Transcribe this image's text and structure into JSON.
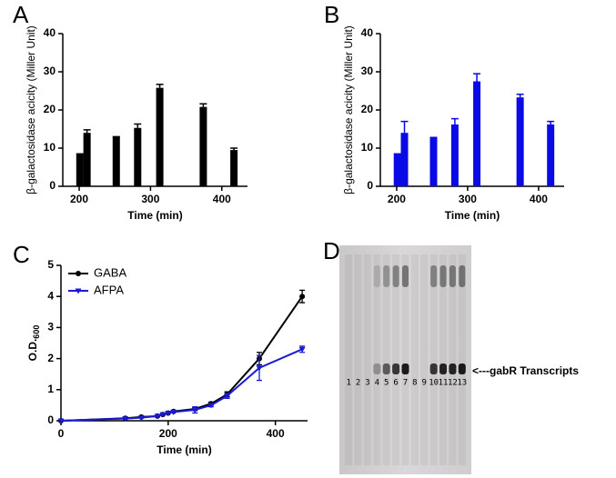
{
  "chart_data": [
    {
      "type": "bar",
      "panel_label": "A",
      "xlabel": "Time (min)",
      "ylabel": "β-galactosidase acicity (Miller Unit)",
      "x": [
        201,
        211,
        252,
        282,
        313,
        374,
        417
      ],
      "xlim": [
        177,
        436
      ],
      "xticks": [
        200,
        300,
        400
      ],
      "ylim": [
        0,
        40
      ],
      "yticks": [
        0,
        10,
        20,
        30,
        40
      ],
      "series": [
        {
          "color": "#000000",
          "values": [
            8.5,
            14,
            13,
            15.3,
            25.8,
            20.8,
            9.5
          ],
          "errors": [
            0,
            0.8,
            0,
            1,
            0.9,
            0.8,
            0.5
          ]
        }
      ]
    },
    {
      "type": "bar",
      "panel_label": "B",
      "xlabel": "Time (min)",
      "ylabel": "β-galactosidase acicity (Miller Unit)",
      "x": [
        201,
        211,
        252,
        282,
        313,
        374,
        417
      ],
      "xlim": [
        177,
        436
      ],
      "xticks": [
        200,
        300,
        400
      ],
      "ylim": [
        0,
        40
      ],
      "yticks": [
        0,
        10,
        20,
        30,
        40
      ],
      "series": [
        {
          "color": "#0a0ae6",
          "values": [
            8.5,
            14,
            12.8,
            16.2,
            27.5,
            23.3,
            16.2
          ],
          "errors": [
            0,
            3,
            0,
            1.5,
            2,
            0.8,
            0.8
          ]
        }
      ]
    },
    {
      "type": "line",
      "panel_label": "C",
      "xlabel": "Time (min)",
      "ylabel": "O.D.",
      "ylabel_sub": "600",
      "x": [
        0,
        120,
        150,
        180,
        190,
        200,
        210,
        250,
        280,
        310,
        370,
        450
      ],
      "xlim": [
        0,
        460
      ],
      "xticks": [
        0,
        200,
        400
      ],
      "ylim": [
        0,
        5
      ],
      "yticks": [
        0,
        1,
        2,
        3,
        4,
        5
      ],
      "legend": "upper left",
      "series": [
        {
          "name": "GABA",
          "color": "#000000",
          "marker": "circle",
          "values": [
            0,
            0.08,
            0.12,
            0.15,
            0.2,
            0.25,
            0.3,
            0.38,
            0.55,
            0.85,
            2.0,
            4.0
          ],
          "errors": [
            0,
            0,
            0,
            0,
            0,
            0,
            0,
            0.05,
            0.05,
            0.08,
            0.2,
            0.2
          ]
        },
        {
          "name": "AFPA",
          "color": "#1a1ad6",
          "marker": "triangle",
          "values": [
            0,
            0.07,
            0.1,
            0.15,
            0.2,
            0.25,
            0.28,
            0.35,
            0.5,
            0.8,
            1.7,
            2.3
          ],
          "errors": [
            0,
            0,
            0,
            0,
            0,
            0,
            0,
            0.1,
            0.05,
            0.08,
            0.4,
            0.1
          ]
        }
      ]
    },
    {
      "type": "gel",
      "panel_label": "D",
      "lanes": [
        "1",
        "2",
        "3",
        "4",
        "5",
        "6",
        "7",
        "8",
        "9",
        "10",
        "11",
        "12",
        "13"
      ],
      "lane_colors": [
        "#000000",
        "#000000",
        "#000000",
        "#000000",
        "#000000",
        "#000000",
        "#000000",
        "#2323c8",
        "#2323c8",
        "#2323c8",
        "#2323c8",
        "#2323c8",
        "#2323c8"
      ],
      "annotation": "<---gabR Transcripts"
    }
  ]
}
